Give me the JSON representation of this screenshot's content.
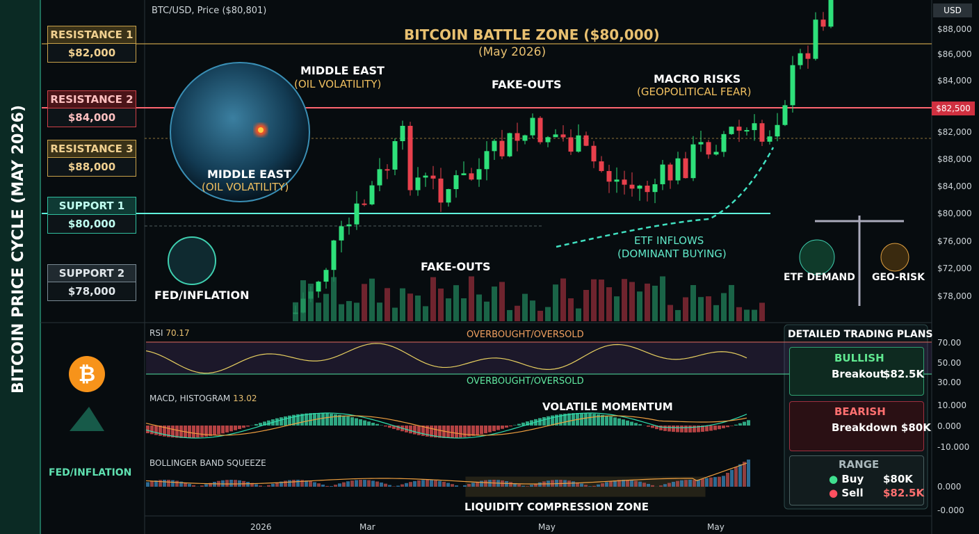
{
  "header": {
    "symbol": "BTC/USD, Price ($80,801)",
    "title": "BITCOIN BATTLE ZONE ($80,000)",
    "subtitle": "(May 2026)",
    "currency": "USD"
  },
  "sidebar": {
    "title": "BITCOIN PRICE CYCLE (MAY 2026)",
    "icon_label": "FED/INFLATION"
  },
  "levels": [
    {
      "name": "RESISTANCE 1",
      "price": "$82,000"
    },
    {
      "name": "RESISTANCE 2",
      "price": "$84,000"
    },
    {
      "name": "RESISTANCE 3",
      "price": "$88,000"
    },
    {
      "name": "SUPPORT 1",
      "price": "$80,000"
    },
    {
      "name": "SUPPORT 2",
      "price": "$78,000"
    }
  ],
  "price_axis": [
    "$88,000",
    "$86,000",
    "$84,000",
    "$82,000",
    "$88,000",
    "$84,000",
    "$80,000",
    "$76,000",
    "$72,000",
    "$78,000"
  ],
  "price_marker": "$82,500",
  "annotations": {
    "globe_title": "MIDDLE EAST",
    "globe_sub": "(OIL VOLATILITY)",
    "globe_title_2": "MIDDLE EAST",
    "globe_sub_2": "(OIL VOLATILITY)",
    "fakeouts_top": "FAKE-OUTS",
    "fakeouts_bottom": "FAKE-OUTS",
    "macro": "MACRO RISKS",
    "macro_sub": "(GEOPOLITICAL FEAR)",
    "etf": "ETF INFLOWS",
    "etf_sub": "(DOMINANT BUYING)",
    "fed": "FED/INFLATION",
    "etf_demand": "ETF DEMAND",
    "geo_risk": "GEO-RISK"
  },
  "rsi": {
    "label": "RSI",
    "value": "70.17",
    "band_top": "OVERBOUGHT/OVERSOLD",
    "band_bottom": "OVERBOUGHT/OVERSOLD",
    "axis": [
      "70.00",
      "50.00",
      "30.00"
    ]
  },
  "macd": {
    "label": "MACD, HISTOGRAM",
    "value": "13.02",
    "note": "VOLATILE MOMENTUM",
    "axis": [
      "10.000",
      "0.000",
      "-10.000"
    ]
  },
  "bollinger": {
    "label": "BOLLINGER BAND SQUEEZE",
    "note": "LIQUIDITY COMPRESSION ZONE",
    "axis": [
      "0.000",
      "-0.000"
    ]
  },
  "x_axis": [
    "2026",
    "Mar",
    "May",
    "May"
  ],
  "plans": {
    "title": "DETAILED TRADING PLANS",
    "bullish": {
      "name": "BULLISH",
      "action": "Breakout",
      "price": "$82.5K"
    },
    "bearish": {
      "name": "BEARISH",
      "action": "Breakdown $80K"
    },
    "range": {
      "name": "RANGE",
      "buy": "Buy",
      "buy_price": "$80K",
      "sell": "Sell",
      "sell_price": "$82.5K"
    }
  }
}
